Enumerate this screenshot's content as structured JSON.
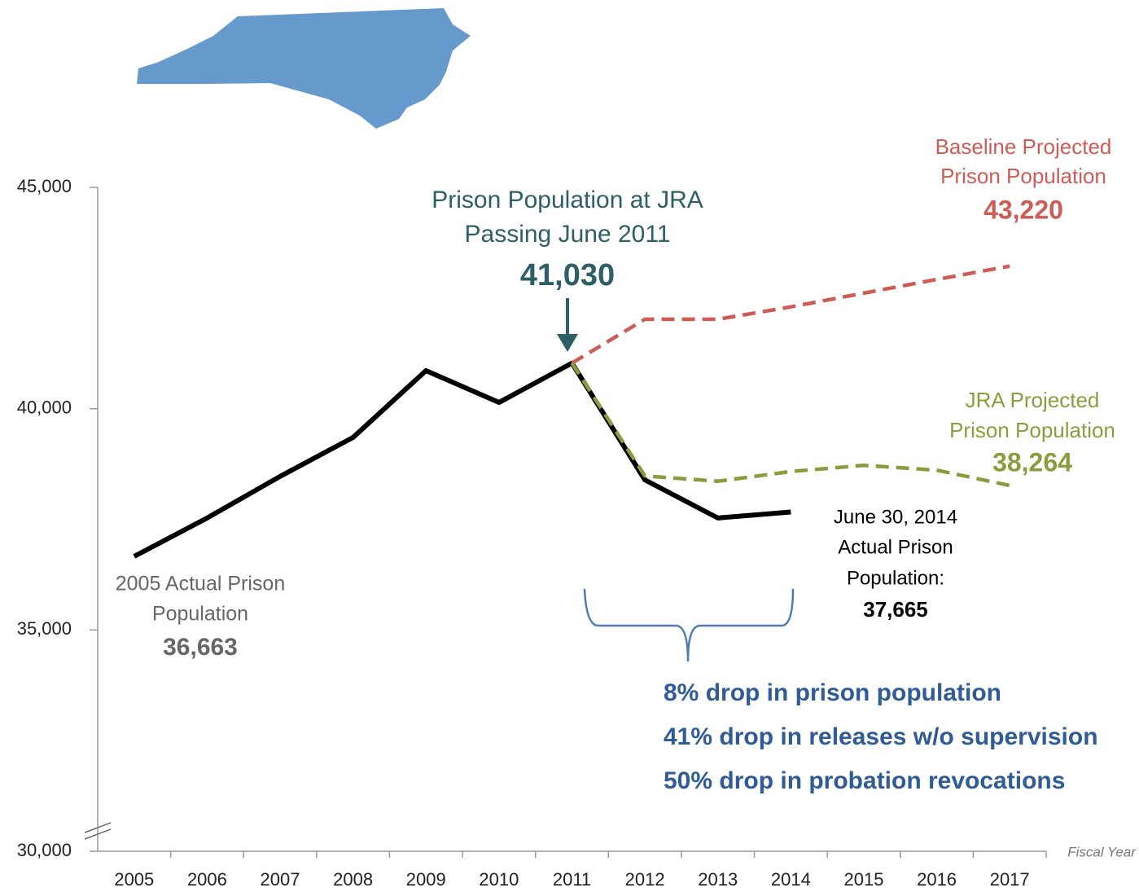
{
  "chart_data": {
    "type": "line",
    "categories": [
      "2005",
      "2006",
      "2007",
      "2008",
      "2009",
      "2010",
      "2011",
      "2012",
      "2013",
      "2014",
      "2015",
      "2016",
      "2017"
    ],
    "series": [
      {
        "name": "Actual Prison Population",
        "color": "#000000",
        "dashed": false,
        "values": [
          36663,
          37530,
          38470,
          39350,
          40860,
          40140,
          41030,
          38390,
          37530,
          37665,
          null,
          null,
          null
        ]
      },
      {
        "name": "Baseline Projected Prison Population",
        "color": "#cd5c57",
        "dashed": true,
        "values": [
          null,
          null,
          null,
          null,
          null,
          null,
          41030,
          42020,
          42020,
          42300,
          42610,
          42920,
          43220
        ]
      },
      {
        "name": "JRA Projected Prison Population",
        "color": "#8a9d3e",
        "dashed": true,
        "values": [
          null,
          null,
          null,
          null,
          null,
          null,
          41030,
          38480,
          38360,
          38580,
          38720,
          38610,
          38264
        ]
      }
    ],
    "ylim": [
      30000,
      45000
    ],
    "yticks": [
      {
        "value": 30000,
        "label": "30,000"
      },
      {
        "value": 35000,
        "label": "35,000"
      },
      {
        "value": 40000,
        "label": "40,000"
      },
      {
        "value": 45000,
        "label": "45,000"
      }
    ],
    "x_label": "Fiscal Year",
    "annotations": [
      {
        "lines": [
          "Prison Population at JRA",
          "Passing June 2011"
        ],
        "value": "41,030"
      },
      {
        "lines": [
          "Baseline Projected",
          "Prison Population"
        ],
        "value": "43,220"
      },
      {
        "lines": [
          "JRA Projected",
          "Prison Population"
        ],
        "value": "38,264"
      },
      {
        "lines": [
          "June 30, 2014",
          "Actual Prison",
          "Population:"
        ],
        "value": "37,665"
      },
      {
        "lines": [
          "2005 Actual Prison",
          "Population"
        ],
        "value": "36,663"
      }
    ],
    "notes": [
      "8% drop in prison population",
      "41% drop in releases w/o supervision",
      "50% drop in probation revocations"
    ]
  }
}
